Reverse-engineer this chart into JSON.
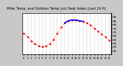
{
  "title": "Milw. Temp. and Outdoor Temp (vs) Heat Index (Last 24 H)",
  "bg_color": "#c8c8c8",
  "plot_bg": "#ffffff",
  "grid_color": "#888888",
  "line_color_red": "#ff0000",
  "line_color_blue": "#0000ff",
  "x_hours": [
    0,
    1,
    2,
    3,
    4,
    5,
    6,
    7,
    8,
    9,
    10,
    11,
    12,
    13,
    14,
    15,
    16,
    17,
    18,
    19,
    20,
    21,
    22,
    23
  ],
  "temp_values": [
    68,
    63,
    58,
    54,
    51,
    50,
    51,
    54,
    60,
    68,
    76,
    82,
    85,
    86,
    86,
    85,
    84,
    82,
    79,
    75,
    71,
    67,
    63,
    59
  ],
  "heat_index_x": [
    11,
    12,
    13,
    14,
    15,
    16
  ],
  "heat_index_y": [
    82,
    85,
    86,
    86,
    85,
    84
  ],
  "ylim": [
    40,
    95
  ],
  "yticks": [
    45,
    50,
    55,
    60,
    65,
    70,
    75,
    80,
    85,
    90
  ],
  "tick_color": "#000000",
  "text_color": "#000000",
  "spine_color": "#000000",
  "title_fontsize": 3.5,
  "tick_fontsize": 3.0,
  "xtick_fontsize": 2.5
}
